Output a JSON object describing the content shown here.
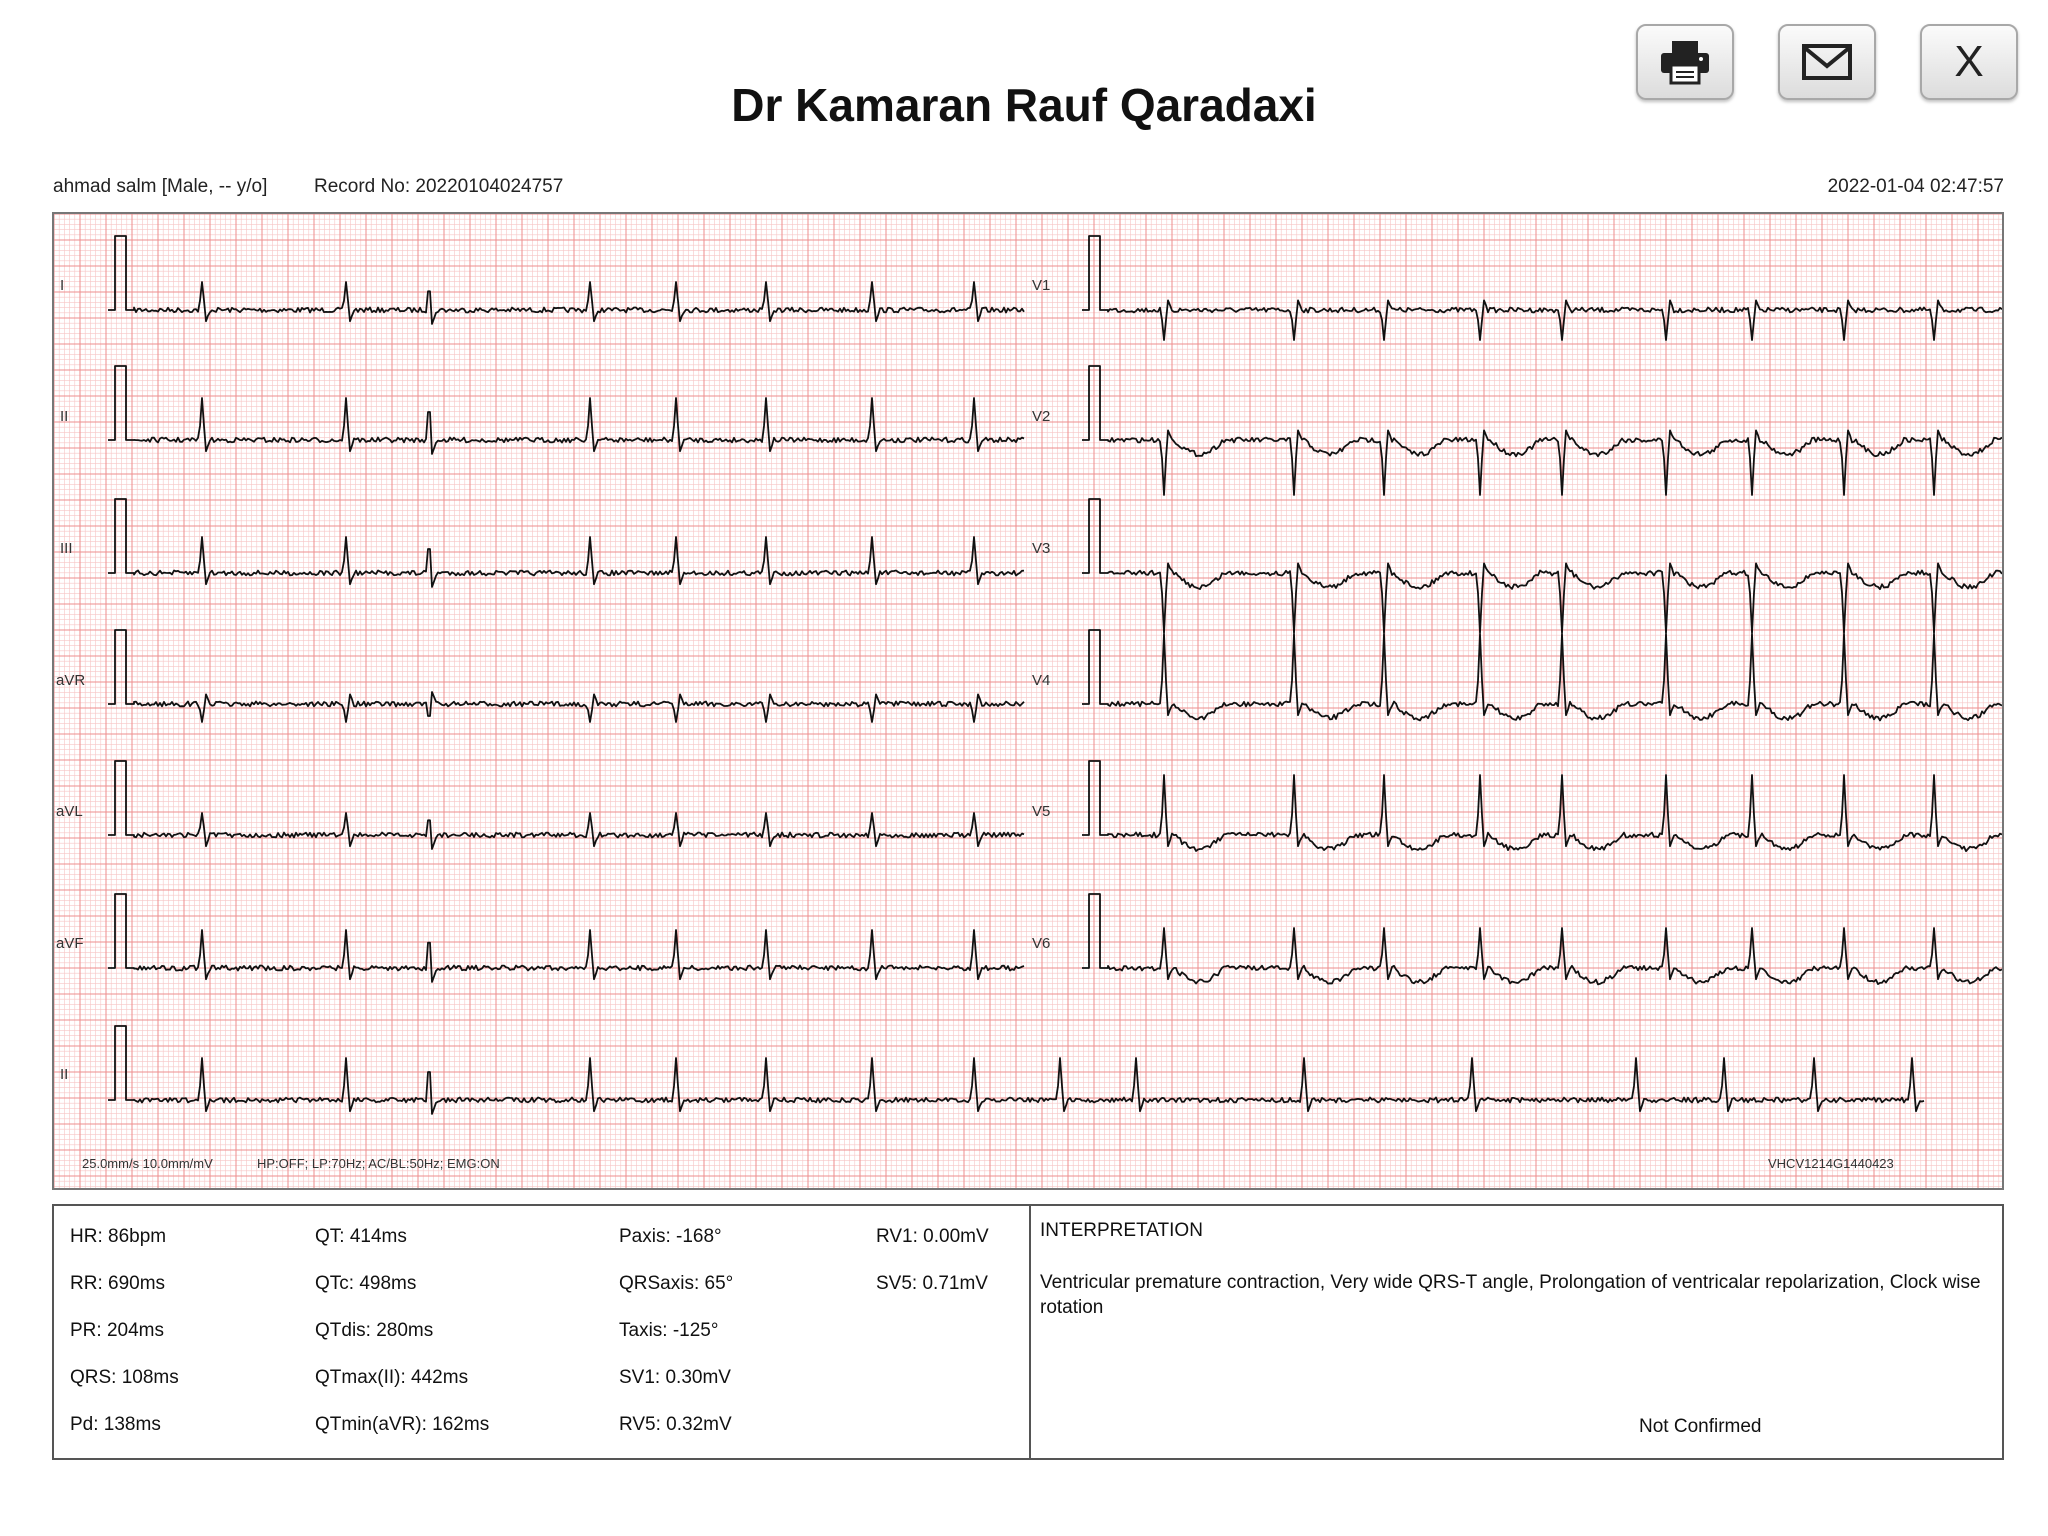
{
  "header": {
    "title": "Dr Kamaran Rauf Qaradaxi"
  },
  "toolbar": {
    "print": {
      "icon": "printer-icon"
    },
    "email": {
      "icon": "envelope-icon"
    },
    "close": {
      "label": "X"
    }
  },
  "patient": {
    "info": "ahmad salm [Male, -- y/o]",
    "record": "Record No: 20220104024757",
    "datetime": "2022-01-04 02:47:57"
  },
  "ecg": {
    "grid_minor_color": "#f7c6c6",
    "grid_major_color": "#ee8e8e",
    "trace_color": "#111111",
    "leads_left": [
      "I",
      "II",
      "III",
      "aVR",
      "aVL",
      "aVF"
    ],
    "leads_right": [
      "V1",
      "V2",
      "V3",
      "V4",
      "V5",
      "V6"
    ],
    "rhythm_lead": "II",
    "settings": "25.0mm/s  10.0mm/mV",
    "filters": "HP:OFF; LP:70Hz; AC/BL:50Hz; EMG:ON",
    "device_id": "VHCV1214G1440423"
  },
  "measurements": {
    "col1": [
      "HR: 86bpm",
      "RR: 690ms",
      "PR: 204ms",
      "QRS: 108ms",
      "Pd: 138ms"
    ],
    "col2": [
      "QT: 414ms",
      "QTc: 498ms",
      "QTdis: 280ms",
      "QTmax(II): 442ms",
      "QTmin(aVR): 162ms"
    ],
    "col3": [
      "Paxis: -168°",
      "QRSaxis: 65°",
      "Taxis: -125°",
      "SV1: 0.30mV",
      "RV5: 0.32mV"
    ],
    "col4": [
      "RV1: 0.00mV",
      "SV5: 0.71mV"
    ]
  },
  "interpretation": {
    "heading": "INTERPRETATION",
    "text": "Ventricular premature contraction, Very wide QRS-T angle, Prolongation of ventricalar repolarization, Clock wise rotation",
    "status": "Not Confirmed"
  }
}
